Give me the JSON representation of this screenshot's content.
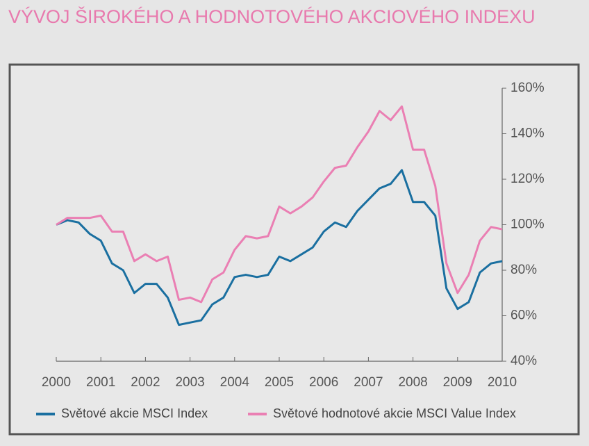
{
  "chart_data": {
    "type": "line",
    "title": "VÝVOJ ŠIROKÉHO A HODNOTOVÉHO AKCIOVÉHO INDEXU",
    "x": [
      2000,
      2000.25,
      2000.5,
      2000.75,
      2001,
      2001.25,
      2001.5,
      2001.75,
      2002,
      2002.25,
      2002.5,
      2002.75,
      2003,
      2003.25,
      2003.5,
      2003.75,
      2004,
      2004.25,
      2004.5,
      2004.75,
      2005,
      2005.25,
      2005.5,
      2005.75,
      2006,
      2006.25,
      2006.5,
      2006.75,
      2007,
      2007.25,
      2007.5,
      2007.75,
      2008,
      2008.25,
      2008.5,
      2008.75,
      2009,
      2009.25,
      2009.5,
      2009.75,
      2010
    ],
    "series": [
      {
        "name": "Světové akcie MSCI Index",
        "color": "#1a6fa0",
        "values": [
          100,
          102,
          101,
          96,
          93,
          83,
          80,
          70,
          74,
          74,
          68,
          56,
          57,
          58,
          65,
          68,
          77,
          78,
          77,
          78,
          86,
          84,
          87,
          90,
          97,
          101,
          99,
          106,
          111,
          116,
          118,
          124,
          110,
          110,
          104,
          72,
          63,
          66,
          79,
          83,
          84
        ]
      },
      {
        "name": "Světové hodnotové akcie MSCI Value Index",
        "color": "#ea7fb3",
        "values": [
          100,
          103,
          103,
          103,
          104,
          97,
          97,
          84,
          87,
          84,
          86,
          67,
          68,
          66,
          76,
          79,
          89,
          95,
          94,
          95,
          108,
          105,
          108,
          112,
          119,
          125,
          126,
          134,
          141,
          150,
          146,
          152,
          133,
          133,
          117,
          83,
          70,
          78,
          93,
          99,
          98
        ]
      }
    ],
    "xlim": [
      2000,
      2010
    ],
    "xticks": [
      2000,
      2001,
      2002,
      2003,
      2004,
      2005,
      2006,
      2007,
      2008,
      2009,
      2010
    ],
    "ylim": [
      40,
      160
    ],
    "yticks": [
      {
        "value": 40,
        "label": "40%"
      },
      {
        "value": 60,
        "label": "60%"
      },
      {
        "value": 80,
        "label": "80%"
      },
      {
        "value": 100,
        "label": "100%"
      },
      {
        "value": 120,
        "label": "120%"
      },
      {
        "value": 140,
        "label": "140%"
      },
      {
        "value": 160,
        "label": "160%"
      }
    ],
    "grid": false,
    "legend": "bottom"
  }
}
